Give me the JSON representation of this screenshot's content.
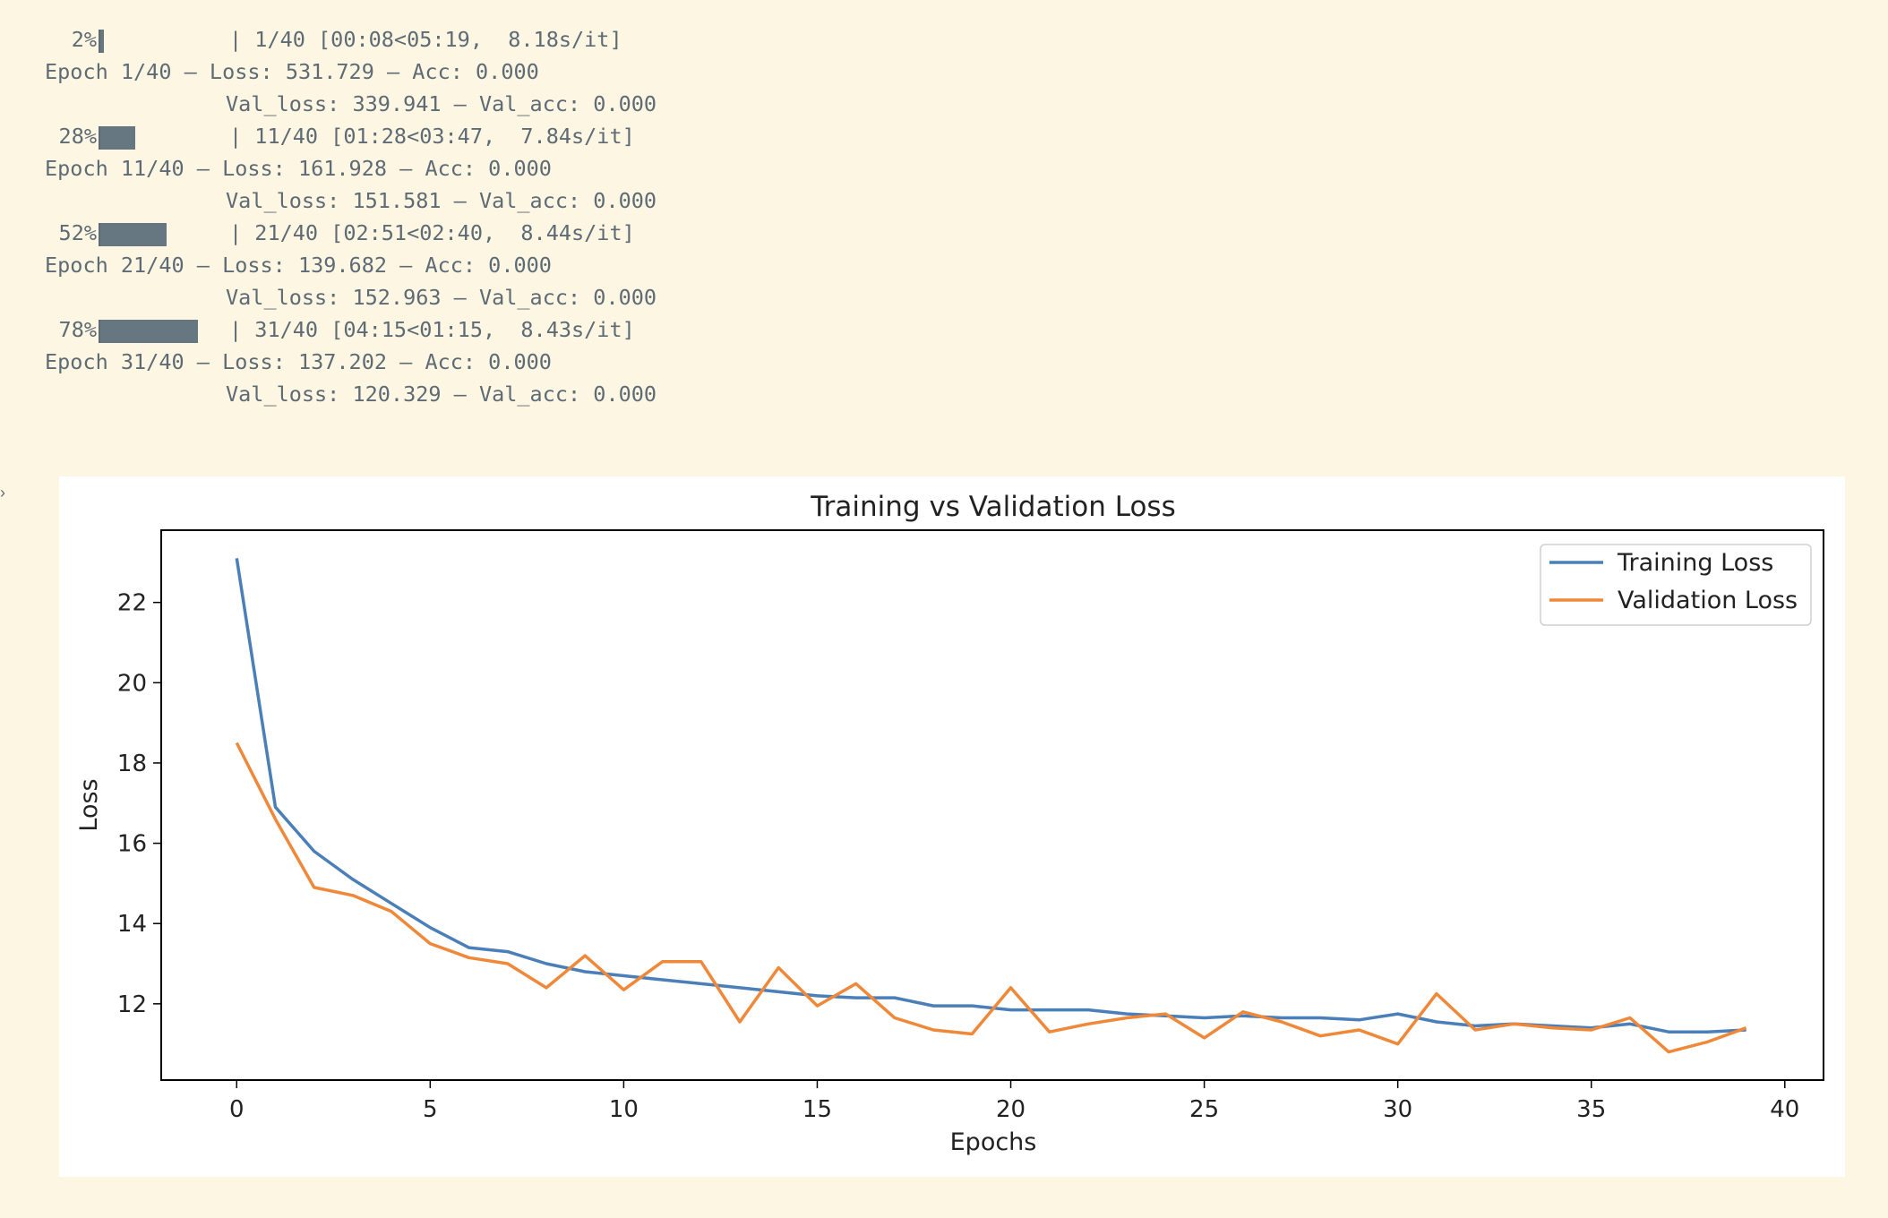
{
  "log": {
    "progress": [
      {
        "pct": "2%",
        "fraction": 0.025,
        "info": "| 1/40 [00:08<05:19,  8.18s/it]",
        "epoch": "Epoch 1/40 – Loss: 531.729 – Acc: 0.000",
        "val": "Val_loss: 339.941 – Val_acc: 0.000"
      },
      {
        "pct": "28%",
        "fraction": 0.275,
        "info": "| 11/40 [01:28<03:47,  7.84s/it]",
        "epoch": "Epoch 11/40 – Loss: 161.928 – Acc: 0.000",
        "val": "Val_loss: 151.581 – Val_acc: 0.000"
      },
      {
        "pct": "52%",
        "fraction": 0.525,
        "info": "| 21/40 [02:51<02:40,  8.44s/it]",
        "epoch": "Epoch 21/40 – Loss: 139.682 – Acc: 0.000",
        "val": "Val_loss: 152.963 – Val_acc: 0.000"
      },
      {
        "pct": "78%",
        "fraction": 0.775,
        "info": "| 31/40 [04:15<01:15,  8.43s/it]",
        "epoch": "Epoch 31/40 – Loss: 137.202 – Acc: 0.000",
        "val": "Val_loss: 120.329 – Val_acc: 0.000"
      }
    ]
  },
  "chart_data": {
    "type": "line",
    "title": "Training vs Validation Loss",
    "xlabel": "Epochs",
    "ylabel": "Loss",
    "xlim": [
      -1.95,
      41.0
    ],
    "ylim": [
      10.1,
      23.8
    ],
    "xticks": [
      0,
      5,
      10,
      15,
      20,
      25,
      30,
      35,
      40
    ],
    "yticks": [
      12,
      14,
      16,
      18,
      20,
      22
    ],
    "grid": false,
    "legend": "top-right",
    "x": [
      0,
      1,
      2,
      3,
      4,
      5,
      6,
      7,
      8,
      9,
      10,
      11,
      12,
      13,
      14,
      15,
      16,
      17,
      18,
      19,
      20,
      21,
      22,
      23,
      24,
      25,
      26,
      27,
      28,
      29,
      30,
      31,
      32,
      33,
      34,
      35,
      36,
      37,
      38,
      39
    ],
    "series": [
      {
        "name": "Training Loss",
        "color": "#4a7fb8",
        "values": [
          23.1,
          16.9,
          15.8,
          15.1,
          14.5,
          13.9,
          13.4,
          13.3,
          13.0,
          12.8,
          12.7,
          12.6,
          12.5,
          12.4,
          12.3,
          12.2,
          12.15,
          12.15,
          11.95,
          11.95,
          11.85,
          11.85,
          11.85,
          11.75,
          11.7,
          11.65,
          11.7,
          11.65,
          11.65,
          11.6,
          11.75,
          11.55,
          11.45,
          11.5,
          11.45,
          11.4,
          11.5,
          11.3,
          11.3,
          11.35
        ]
      },
      {
        "name": "Validation Loss",
        "color": "#f0883a",
        "values": [
          18.5,
          16.6,
          14.9,
          14.7,
          14.3,
          13.5,
          13.15,
          13.0,
          12.4,
          13.2,
          12.35,
          13.05,
          13.05,
          11.55,
          12.9,
          11.95,
          12.5,
          11.65,
          11.35,
          11.25,
          12.4,
          11.3,
          11.5,
          11.65,
          11.75,
          11.15,
          11.8,
          11.55,
          11.2,
          11.35,
          11.0,
          12.25,
          11.35,
          11.5,
          11.4,
          11.35,
          11.65,
          10.8,
          11.05,
          11.4
        ]
      }
    ]
  }
}
